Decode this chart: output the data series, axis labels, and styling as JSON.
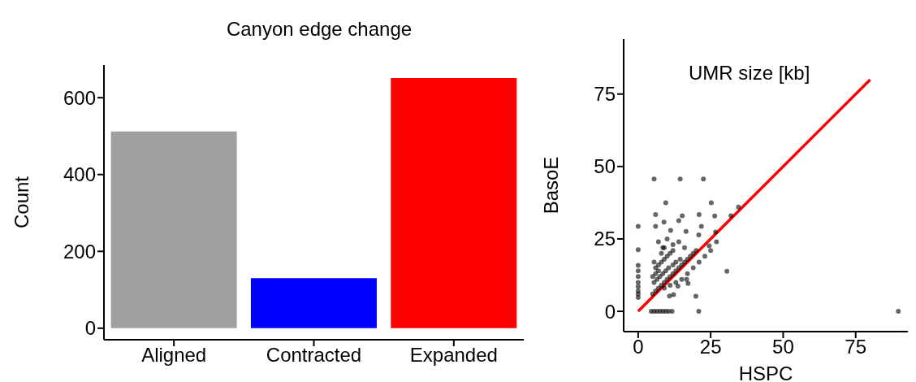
{
  "chart_data": [
    {
      "type": "bar",
      "title": "Canyon edge change",
      "ylabel": "Count",
      "categories": [
        "Aligned",
        "Contracted",
        "Expanded"
      ],
      "values": [
        512,
        130,
        651
      ],
      "colors": [
        "#a0a0a0",
        "#0000ff",
        "#ff0000"
      ],
      "ylim": [
        -30,
        685
      ],
      "yticks": [
        0,
        200,
        400,
        600
      ]
    },
    {
      "type": "scatter",
      "title": "UMR size [kb]",
      "xlabel": "HSPC",
      "ylabel": "BasoE",
      "xlim": [
        -5,
        93
      ],
      "ylim": [
        -7,
        94
      ],
      "xticks": [
        0,
        25,
        50,
        75
      ],
      "yticks": [
        0,
        25,
        50,
        75
      ],
      "series": [
        {
          "type": "scatter",
          "marker": "circle",
          "color": "#000000",
          "x": [
            5.5,
            14.5,
            22.5,
            9.5,
            25.2,
            6,
            15.2,
            21,
            26.4,
            34.6,
            14,
            21.8,
            6,
            0,
            0,
            0,
            0,
            0,
            0,
            0,
            0,
            0,
            0,
            11.2,
            16.5,
            20.9,
            26.7,
            8.9,
            24.5,
            30.6,
            89.7,
            20.9,
            19.9,
            16.7,
            17.2,
            13.7,
            12.2,
            10.8,
            4.5,
            5.5,
            6.5,
            7.5,
            8.5,
            9.5,
            10.5,
            11.7,
            5,
            6,
            7,
            8,
            9,
            10,
            11,
            12,
            13,
            14,
            15,
            16,
            17,
            18,
            19,
            20,
            5.5,
            6.5,
            7.5,
            8.5,
            9.5,
            10.5,
            12,
            13,
            14.5,
            6,
            7,
            8,
            9,
            10,
            11,
            12,
            5,
            6,
            7,
            8,
            9,
            5.5,
            7,
            8.5,
            10,
            12,
            14,
            16,
            9,
            11,
            13,
            15,
            17,
            19,
            21,
            23,
            25,
            27,
            32
          ],
          "values": [
            45.7,
            45.7,
            45.7,
            37.5,
            37.5,
            33.4,
            33,
            33.4,
            32.9,
            36,
            31.3,
            29.3,
            29.3,
            29.3,
            21.3,
            15.9,
            14,
            12,
            10,
            8.5,
            7,
            6,
            4.8,
            27.9,
            27.6,
            26.4,
            27.4,
            30.8,
            22.6,
            13.8,
            0,
            0,
            5.2,
            11,
            9.6,
            8.7,
            5.8,
            5.3,
            0,
            0,
            0,
            0,
            0,
            0,
            0,
            0,
            6,
            7,
            8,
            9,
            10,
            11,
            12,
            13,
            14,
            15,
            16,
            17,
            18,
            19,
            20,
            21,
            10,
            11,
            12,
            13,
            14,
            15,
            16,
            17,
            18,
            15,
            16,
            17,
            18,
            19,
            20,
            21,
            12,
            13,
            14,
            20,
            22,
            17,
            24,
            22,
            25,
            23,
            24,
            22,
            8,
            9,
            10,
            11,
            13,
            15,
            17,
            19,
            21,
            24,
            33
          ]
        },
        {
          "type": "line",
          "marker": "none",
          "color": "#ff0000",
          "x": [
            0,
            80
          ],
          "values": [
            0,
            80
          ]
        }
      ]
    }
  ]
}
